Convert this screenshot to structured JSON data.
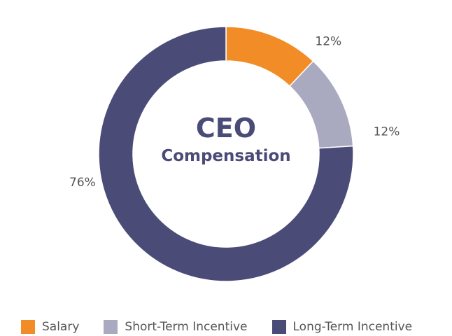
{
  "chart_data": {
    "type": "pie",
    "donut": true,
    "title": "CEO",
    "subtitle": "Compensation",
    "categories": [
      "Salary",
      "Short-Term Incentive",
      "Long-Term Incentive"
    ],
    "values": [
      12,
      12,
      76
    ],
    "value_labels": [
      "12%",
      "12%",
      "76%"
    ],
    "colors": [
      "#f28c26",
      "#a9a9c0",
      "#4b4b78"
    ],
    "legend_position": "bottom"
  }
}
